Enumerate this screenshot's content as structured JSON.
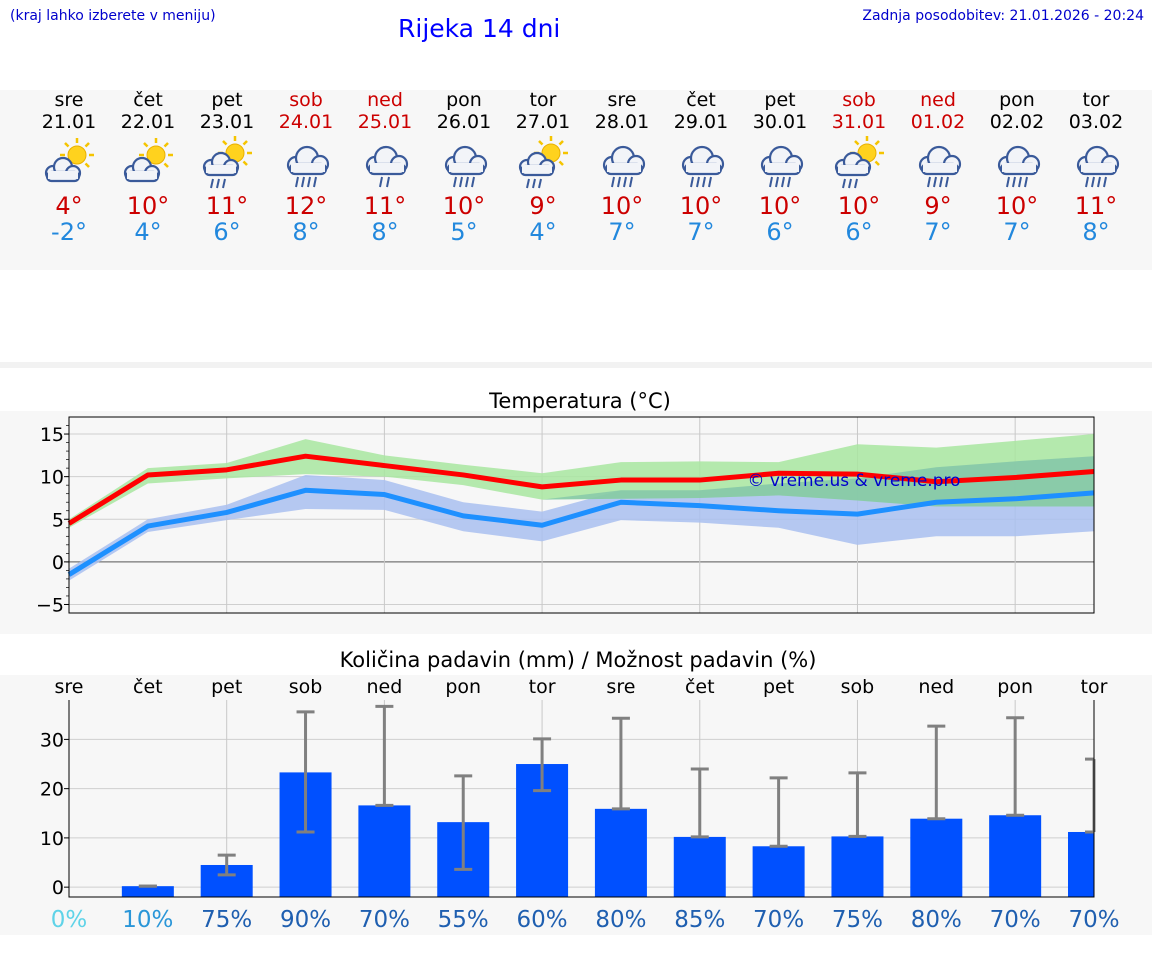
{
  "header": {
    "note": "(kraj lahko izberete v meniju)",
    "title": "Rijeka 14 dni",
    "updated": "Zadnja posodobitev: 21.01.2026 - 20:24"
  },
  "days": [
    {
      "name": "sre",
      "date": "21.01",
      "icon": "partly-cloudy-sun",
      "max": "4°",
      "min": "-2°",
      "weekend": false
    },
    {
      "name": "čet",
      "date": "22.01",
      "icon": "partly-cloudy-sun",
      "max": "10°",
      "min": "4°",
      "weekend": false
    },
    {
      "name": "pet",
      "date": "23.01",
      "icon": "sun-rain",
      "max": "11°",
      "min": "6°",
      "weekend": false
    },
    {
      "name": "sob",
      "date": "24.01",
      "icon": "rain-cloud",
      "max": "12°",
      "min": "8°",
      "weekend": true
    },
    {
      "name": "ned",
      "date": "25.01",
      "icon": "light-rain-cloud",
      "max": "11°",
      "min": "8°",
      "weekend": true
    },
    {
      "name": "pon",
      "date": "26.01",
      "icon": "rain-cloud",
      "max": "10°",
      "min": "5°",
      "weekend": false
    },
    {
      "name": "tor",
      "date": "27.01",
      "icon": "sun-rain",
      "max": "9°",
      "min": "4°",
      "weekend": false
    },
    {
      "name": "sre",
      "date": "28.01",
      "icon": "rain-cloud",
      "max": "10°",
      "min": "7°",
      "weekend": false
    },
    {
      "name": "čet",
      "date": "29.01",
      "icon": "rain-cloud",
      "max": "10°",
      "min": "7°",
      "weekend": false
    },
    {
      "name": "pet",
      "date": "30.01",
      "icon": "rain-cloud",
      "max": "10°",
      "min": "6°",
      "weekend": false
    },
    {
      "name": "sob",
      "date": "31.01",
      "icon": "sun-rain",
      "max": "10°",
      "min": "6°",
      "weekend": true
    },
    {
      "name": "ned",
      "date": "01.02",
      "icon": "rain-cloud",
      "max": "9°",
      "min": "7°",
      "weekend": true
    },
    {
      "name": "pon",
      "date": "02.02",
      "icon": "rain-cloud",
      "max": "10°",
      "min": "7°",
      "weekend": false
    },
    {
      "name": "tor",
      "date": "03.02",
      "icon": "rain-cloud",
      "max": "11°",
      "min": "8°",
      "weekend": false
    }
  ],
  "colors": {
    "max_line": "#ff0000",
    "min_line": "#1e90ff",
    "max_band": "#a8e6a0",
    "min_band": "#a9bff0",
    "bar": "#0050ff",
    "error": "#808080",
    "watermark": "#0000cc"
  },
  "chart_data": [
    {
      "type": "line",
      "title": "Temperatura (°C)",
      "watermark": "© vreme.us & vreme.pro",
      "ylim": [
        -6,
        17
      ],
      "yticks": [
        15,
        10,
        5,
        0,
        -5
      ],
      "ytick_labels": [
        "15",
        "10",
        "5",
        "0",
        "−5"
      ],
      "series": [
        {
          "name": "max",
          "values": [
            4.5,
            10.2,
            10.8,
            12.4,
            11.3,
            10.2,
            8.8,
            9.6,
            9.6,
            10.4,
            10.3,
            9.4,
            9.9,
            10.6
          ]
        },
        {
          "name": "min",
          "values": [
            -1.5,
            4.2,
            5.8,
            8.4,
            7.9,
            5.4,
            4.3,
            7.0,
            6.6,
            6.0,
            5.6,
            7.0,
            7.4,
            8.1
          ]
        }
      ],
      "max_range": {
        "low": [
          4.0,
          9.2,
          9.8,
          10.3,
          10.0,
          9.0,
          7.3,
          7.4,
          7.5,
          7.8,
          7.2,
          6.5,
          6.5,
          6.5
        ],
        "high": [
          5.0,
          11.0,
          11.6,
          14.4,
          12.5,
          11.4,
          10.4,
          11.7,
          11.8,
          11.7,
          13.8,
          13.4,
          14.2,
          15.0
        ]
      },
      "min_range": {
        "low": [
          -2.2,
          3.5,
          4.9,
          6.2,
          6.1,
          3.6,
          2.4,
          4.9,
          4.6,
          4.0,
          2.0,
          3.0,
          3.0,
          3.6
        ],
        "high": [
          -0.8,
          5.0,
          6.7,
          10.2,
          9.6,
          7.0,
          5.9,
          8.4,
          8.4,
          9.2,
          9.8,
          11.1,
          11.8,
          12.4
        ]
      }
    },
    {
      "type": "bar",
      "title": "Količina padavin (mm) / Možnost padavin (%)",
      "categories": [
        "sre",
        "čet",
        "pet",
        "sob",
        "ned",
        "pon",
        "tor",
        "sre",
        "čet",
        "pet",
        "sob",
        "ned",
        "pon",
        "tor"
      ],
      "ylim": [
        -2,
        38
      ],
      "yticks": [
        30,
        20,
        10,
        0
      ],
      "ytick_labels": [
        "30",
        "20",
        "10",
        "0"
      ],
      "values": [
        0,
        0.2,
        4.5,
        23.3,
        16.6,
        13.2,
        25.0,
        15.9,
        10.2,
        8.3,
        10.3,
        13.9,
        14.6,
        11.2
      ],
      "error_low": [
        0,
        0.2,
        2.5,
        11.2,
        16.6,
        3.6,
        19.6,
        15.9,
        10.2,
        8.3,
        10.3,
        13.9,
        14.6,
        11.2
      ],
      "error_high": [
        0,
        0.2,
        6.5,
        35.6,
        36.7,
        22.6,
        30.1,
        34.3,
        24.0,
        22.2,
        23.2,
        32.7,
        34.4,
        26.0
      ],
      "probability": [
        "0%",
        "10%",
        "75%",
        "90%",
        "70%",
        "55%",
        "60%",
        "80%",
        "85%",
        "70%",
        "75%",
        "80%",
        "70%",
        "70%"
      ]
    }
  ]
}
